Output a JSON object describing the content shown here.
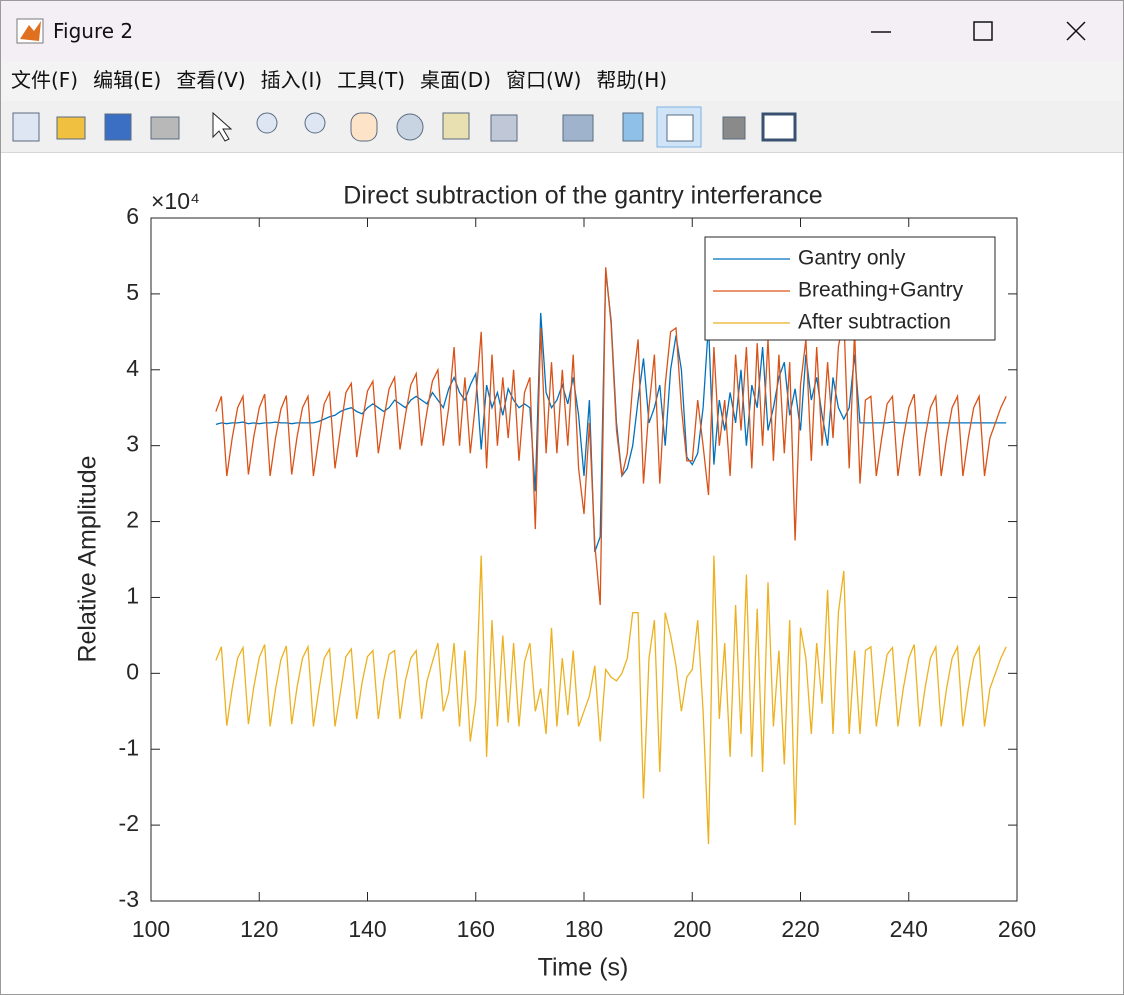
{
  "window": {
    "title": "Figure 2",
    "menu": [
      "文件(F)",
      "编辑(E)",
      "查看(V)",
      "插入(I)",
      "工具(T)",
      "桌面(D)",
      "窗口(W)",
      "帮助(H)"
    ]
  },
  "chart_data": {
    "type": "line",
    "title": "Direct subtraction of the gantry interferance",
    "x_label": "Time (s)",
    "y_label": "Relative Amplitude",
    "exponent_label": "×10⁴",
    "xlim": [
      100,
      260
    ],
    "xticks": [
      100,
      120,
      140,
      160,
      180,
      200,
      220,
      240,
      260
    ],
    "ylim": [
      -3,
      6
    ],
    "yticks": [
      -3,
      -2,
      -1,
      0,
      1,
      2,
      3,
      4,
      5,
      6
    ],
    "grid": false,
    "legend": "northeast",
    "x": [
      112,
      113,
      114,
      115,
      116,
      117,
      118,
      119,
      120,
      121,
      122,
      123,
      124,
      125,
      126,
      127,
      128,
      129,
      130,
      131,
      132,
      133,
      134,
      135,
      136,
      137,
      138,
      139,
      140,
      141,
      142,
      143,
      144,
      145,
      146,
      147,
      148,
      149,
      150,
      151,
      152,
      153,
      154,
      155,
      156,
      157,
      158,
      159,
      160,
      161,
      162,
      163,
      164,
      165,
      166,
      167,
      168,
      169,
      170,
      171,
      172,
      173,
      174,
      175,
      176,
      177,
      178,
      179,
      180,
      181,
      182,
      183,
      184,
      185,
      186,
      187,
      188,
      189,
      190,
      191,
      192,
      193,
      194,
      195,
      196,
      197,
      198,
      199,
      200,
      201,
      202,
      203,
      204,
      205,
      206,
      207,
      208,
      209,
      210,
      211,
      212,
      213,
      214,
      215,
      216,
      217,
      218,
      219,
      220,
      221,
      222,
      223,
      224,
      225,
      226,
      227,
      228,
      229,
      230,
      231,
      232,
      233,
      234,
      235,
      236,
      237,
      238,
      239,
      240,
      241,
      242,
      243,
      244,
      245,
      246,
      247,
      248,
      249,
      250,
      251,
      252,
      253,
      254,
      255,
      256,
      257,
      258
    ],
    "series": [
      {
        "name": "Gantry only",
        "color": "#0072bd",
        "values": [
          3.28,
          3.3,
          3.29,
          3.3,
          3.3,
          3.31,
          3.29,
          3.3,
          3.29,
          3.3,
          3.3,
          3.31,
          3.3,
          3.3,
          3.29,
          3.3,
          3.3,
          3.3,
          3.3,
          3.32,
          3.35,
          3.38,
          3.4,
          3.45,
          3.48,
          3.5,
          3.45,
          3.42,
          3.5,
          3.55,
          3.5,
          3.45,
          3.5,
          3.6,
          3.55,
          3.5,
          3.6,
          3.65,
          3.6,
          3.55,
          3.7,
          3.6,
          3.5,
          3.75,
          3.9,
          3.7,
          3.6,
          3.8,
          3.95,
          2.95,
          3.8,
          3.5,
          3.7,
          3.4,
          3.75,
          3.6,
          3.5,
          3.55,
          3.5,
          2.4,
          4.75,
          3.7,
          3.5,
          3.6,
          3.8,
          3.55,
          3.9,
          3.4,
          2.6,
          3.6,
          1.6,
          1.8,
          5.3,
          4.65,
          3.3,
          2.6,
          2.7,
          3.0,
          3.6,
          4.15,
          3.3,
          3.5,
          3.8,
          3.0,
          4.0,
          4.45,
          4.0,
          2.85,
          2.75,
          2.9,
          3.5,
          4.6,
          2.75,
          3.6,
          3.2,
          3.7,
          3.3,
          4.0,
          3.0,
          3.8,
          3.5,
          4.3,
          3.2,
          3.5,
          3.9,
          4.1,
          3.4,
          3.75,
          3.2,
          4.2,
          3.6,
          3.9,
          3.4,
          3.0,
          3.9,
          3.5,
          3.35,
          3.5,
          4.2,
          3.3,
          3.3,
          3.3,
          3.3,
          3.3,
          3.3,
          3.31,
          3.3,
          3.3,
          3.3,
          3.3,
          3.3,
          3.3,
          3.3,
          3.3,
          3.3,
          3.3,
          3.3,
          3.3,
          3.3,
          3.3,
          3.3,
          3.3,
          3.3,
          3.3,
          3.3,
          3.3,
          3.3
        ]
      },
      {
        "name": "Breathing+Gantry",
        "color": "#d95319",
        "values": [
          3.45,
          3.65,
          2.6,
          3.1,
          3.5,
          3.65,
          2.62,
          3.12,
          3.5,
          3.68,
          2.6,
          3.1,
          3.48,
          3.66,
          2.62,
          3.12,
          3.5,
          3.65,
          2.6,
          3.1,
          3.55,
          3.7,
          2.7,
          3.2,
          3.7,
          3.82,
          2.85,
          3.3,
          3.72,
          3.85,
          2.9,
          3.35,
          3.75,
          3.9,
          2.95,
          3.4,
          3.8,
          3.95,
          3.0,
          3.45,
          3.85,
          4.0,
          3.0,
          3.5,
          4.3,
          3.0,
          3.9,
          2.9,
          3.6,
          4.5,
          2.7,
          4.2,
          3.0,
          3.9,
          3.1,
          4.0,
          2.8,
          3.7,
          3.9,
          1.9,
          4.55,
          2.9,
          4.1,
          2.9,
          4.0,
          3.0,
          4.2,
          2.7,
          2.1,
          3.3,
          1.7,
          0.9,
          5.35,
          4.6,
          3.2,
          2.6,
          2.9,
          3.8,
          4.4,
          2.5,
          3.5,
          4.2,
          2.5,
          3.8,
          4.5,
          4.55,
          3.5,
          2.8,
          2.8,
          3.6,
          3.0,
          2.35,
          4.3,
          3.0,
          3.6,
          2.6,
          4.2,
          3.2,
          4.3,
          2.7,
          4.35,
          3.0,
          4.4,
          2.8,
          4.2,
          2.9,
          4.1,
          1.75,
          3.8,
          4.4,
          2.8,
          4.3,
          3.0,
          4.1,
          3.1,
          4.3,
          4.7,
          2.7,
          4.5,
          2.5,
          3.6,
          3.65,
          2.6,
          3.1,
          3.55,
          3.65,
          2.6,
          3.1,
          3.5,
          3.68,
          2.6,
          3.1,
          3.5,
          3.65,
          2.6,
          3.1,
          3.5,
          3.65,
          2.6,
          3.1,
          3.5,
          3.65,
          2.6,
          3.1,
          3.3,
          3.5,
          3.65
        ]
      },
      {
        "name": "After subtraction",
        "color": "#edb120",
        "values": [
          0.17,
          0.35,
          -0.69,
          -0.2,
          0.2,
          0.34,
          -0.67,
          -0.18,
          0.21,
          0.38,
          -0.7,
          -0.21,
          0.18,
          0.36,
          -0.67,
          -0.18,
          0.2,
          0.35,
          -0.7,
          -0.22,
          0.2,
          0.32,
          -0.7,
          -0.25,
          0.22,
          0.32,
          -0.6,
          -0.12,
          0.22,
          0.3,
          -0.6,
          -0.1,
          0.25,
          0.3,
          -0.6,
          -0.1,
          0.2,
          0.3,
          -0.6,
          -0.1,
          0.15,
          0.4,
          -0.5,
          -0.25,
          0.4,
          -0.7,
          0.3,
          -0.9,
          -0.35,
          1.55,
          -1.1,
          0.7,
          -0.7,
          0.5,
          -0.65,
          0.4,
          -0.7,
          0.15,
          0.4,
          -0.5,
          -0.2,
          -0.8,
          0.6,
          -0.7,
          0.2,
          -0.55,
          0.3,
          -0.7,
          -0.5,
          -0.3,
          0.1,
          -0.9,
          0.05,
          -0.05,
          -0.1,
          0,
          0.2,
          0.8,
          0.8,
          -1.65,
          0.2,
          0.7,
          -1.3,
          0.8,
          0.5,
          0.1,
          -0.5,
          -0.05,
          0.05,
          0.7,
          -0.5,
          -2.25,
          1.55,
          -0.6,
          0.4,
          -1.1,
          0.9,
          -0.8,
          1.3,
          -1.1,
          0.85,
          -1.3,
          1.2,
          -0.7,
          0.3,
          -1.2,
          0.7,
          -2.0,
          0.6,
          0.2,
          -0.8,
          0.4,
          -0.4,
          1.1,
          -0.8,
          0.8,
          1.35,
          -0.8,
          0.3,
          -0.8,
          0.3,
          0.35,
          -0.7,
          -0.2,
          0.25,
          0.34,
          -0.7,
          -0.2,
          0.2,
          0.38,
          -0.7,
          -0.2,
          0.2,
          0.35,
          -0.7,
          -0.2,
          0.2,
          0.35,
          -0.7,
          -0.2,
          0.2,
          0.35,
          -0.7,
          -0.2,
          0,
          0.2,
          0.35
        ]
      }
    ]
  }
}
